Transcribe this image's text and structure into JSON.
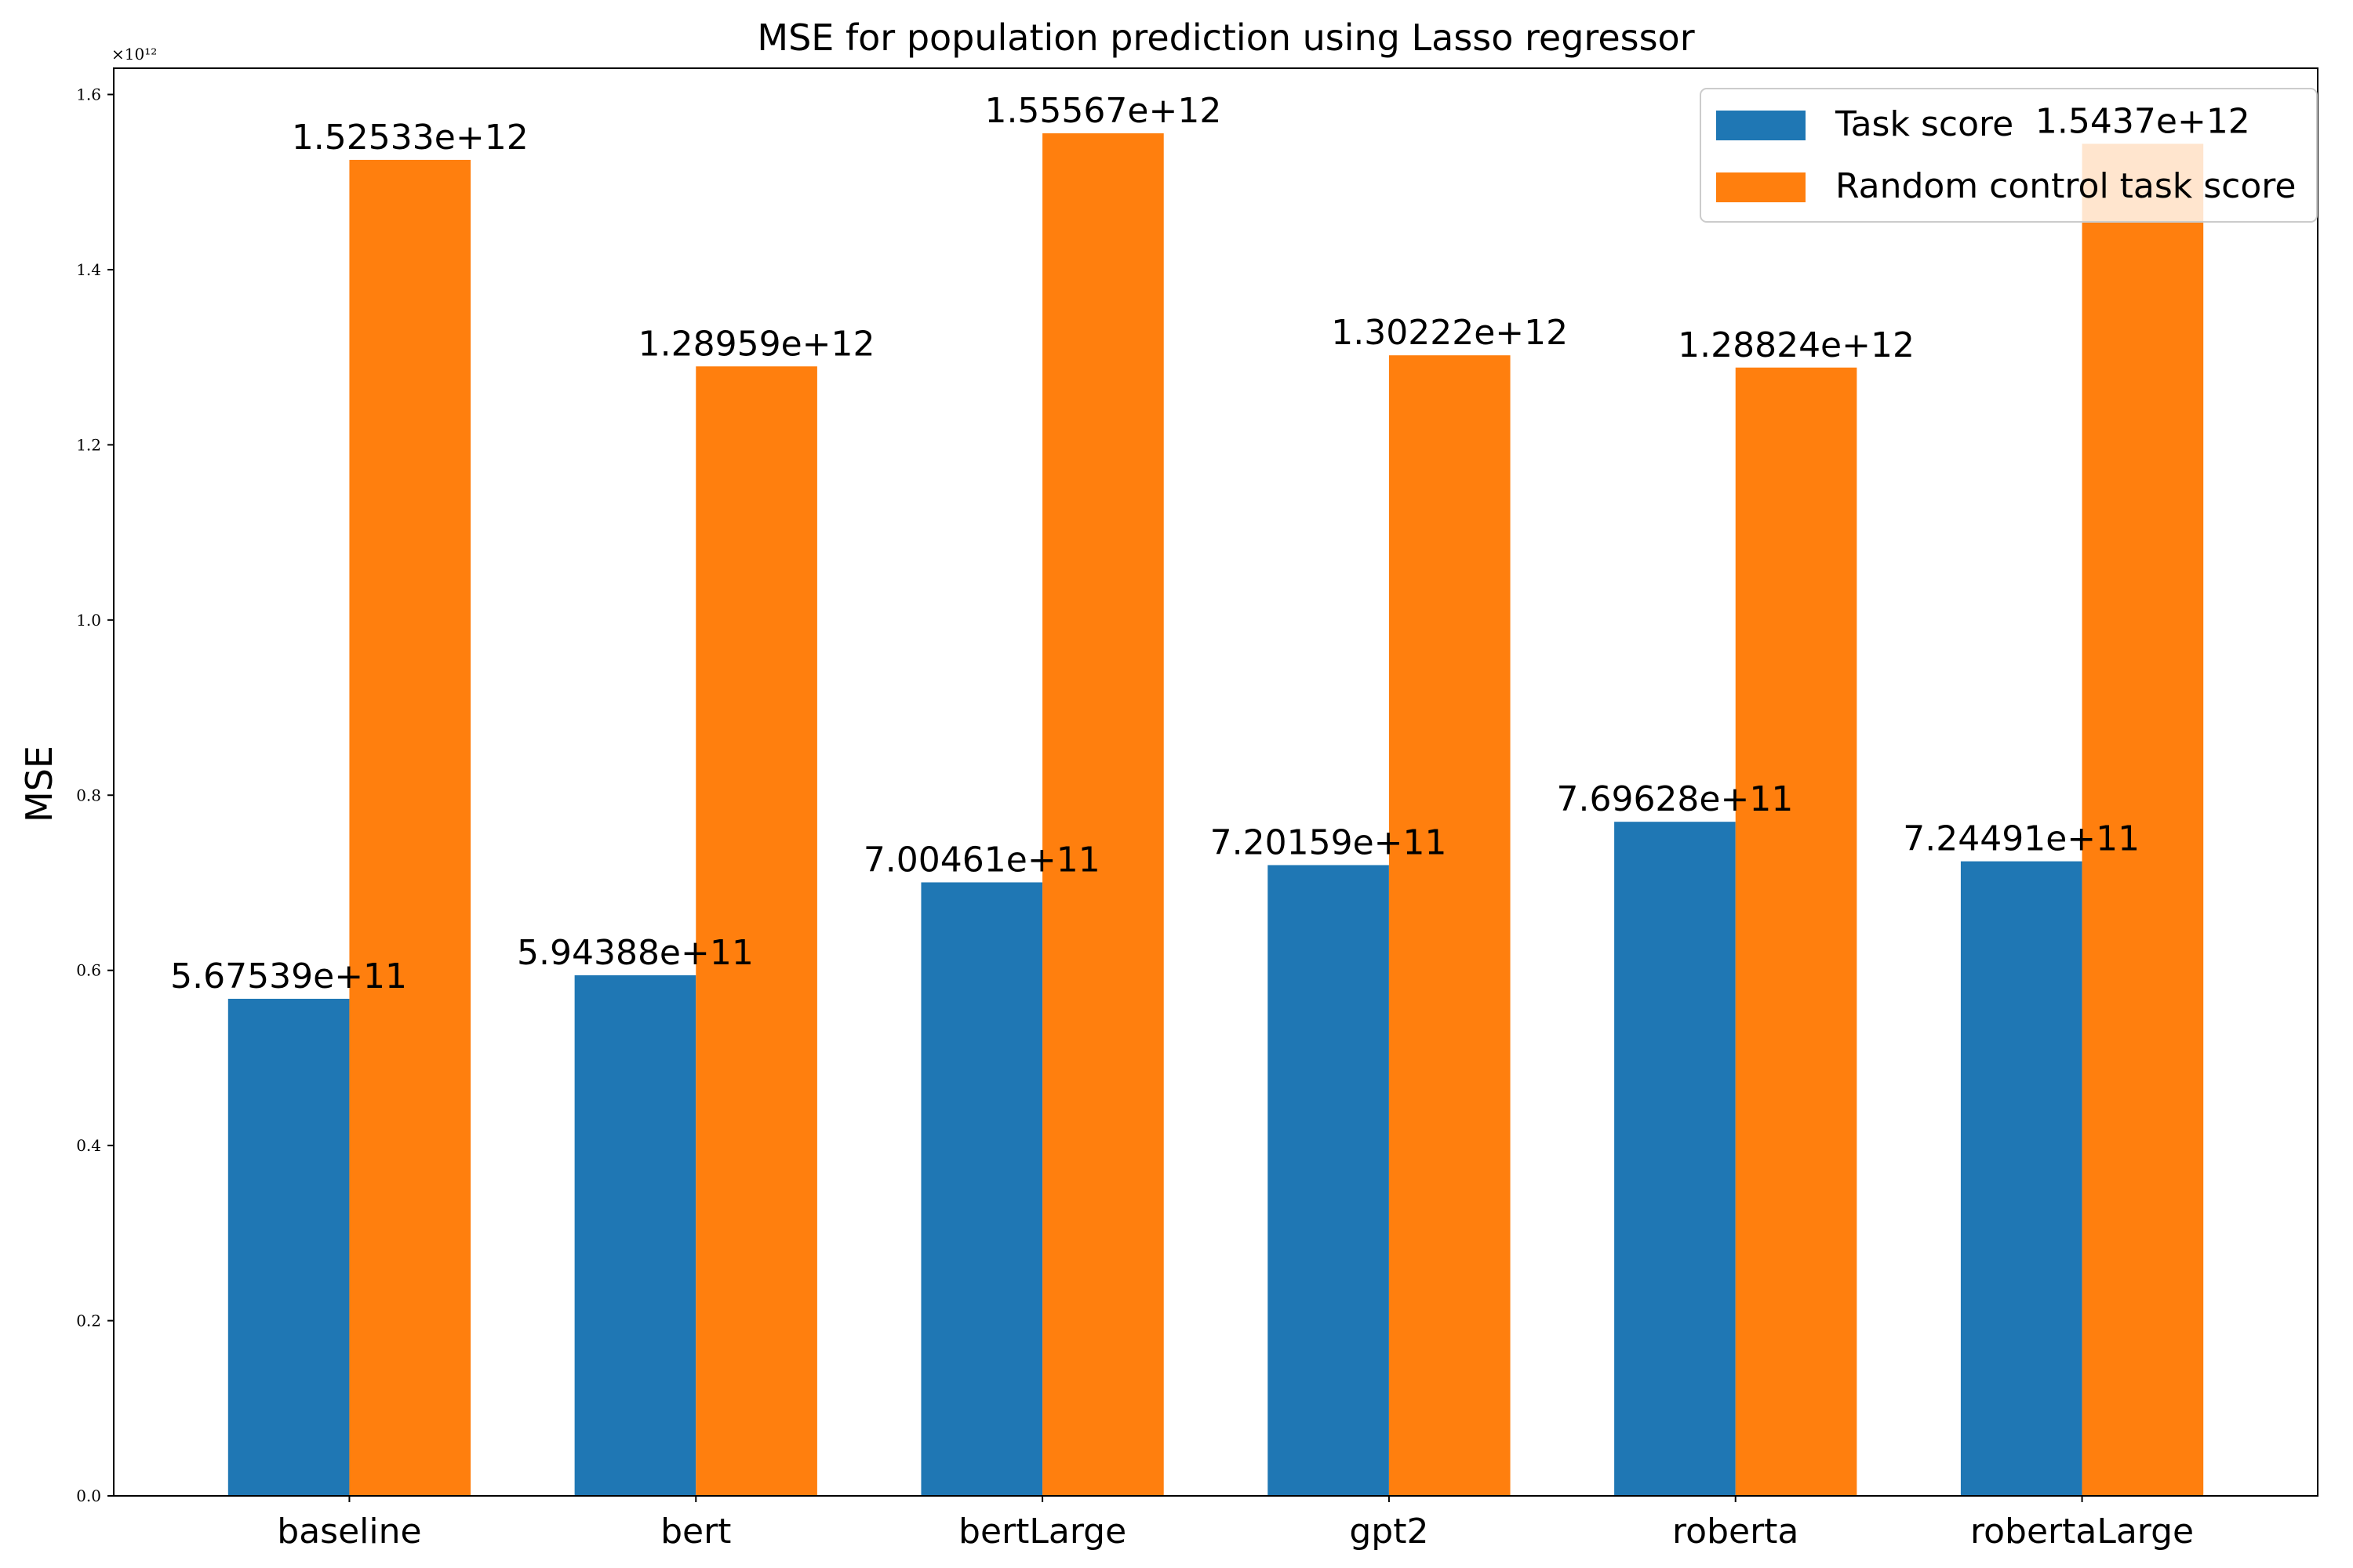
{
  "chart_data": {
    "type": "bar",
    "title": "MSE for population prediction using Lasso regressor",
    "xlabel": "",
    "ylabel": "MSE",
    "y_offset_label": "×10¹²",
    "categories": [
      "baseline",
      "bert",
      "bertLarge",
      "gpt2",
      "roberta",
      "robertaLarge"
    ],
    "series": [
      {
        "name": "Task score",
        "color": "#1f77b4",
        "values": [
          567539000000,
          594388000000,
          700461000000,
          720159000000,
          769628000000,
          724491000000
        ],
        "labels": [
          "5.67539e+11",
          "5.94388e+11",
          "7.00461e+11",
          "7.20159e+11",
          "7.69628e+11",
          "7.24491e+11"
        ]
      },
      {
        "name": "Random control task score",
        "color": "#ff7f0e",
        "values": [
          1525330000000,
          1289590000000,
          1555670000000,
          1302220000000,
          1288240000000,
          1543700000000
        ],
        "labels": [
          "1.52533e+12",
          "1.28959e+12",
          "1.55567e+12",
          "1.30222e+12",
          "1.28824e+12",
          "1.5437e+12"
        ]
      }
    ],
    "ylim": [
      0,
      1630000000000
    ],
    "yticks": [
      0,
      200000000000,
      400000000000,
      600000000000,
      800000000000,
      1000000000000,
      1200000000000,
      1400000000000,
      1600000000000
    ],
    "ytick_labels": [
      "0.0",
      "0.2",
      "0.4",
      "0.6",
      "0.8",
      "1.0",
      "1.2",
      "1.4",
      "1.6"
    ],
    "grid": false,
    "legend_position": "top-right"
  }
}
